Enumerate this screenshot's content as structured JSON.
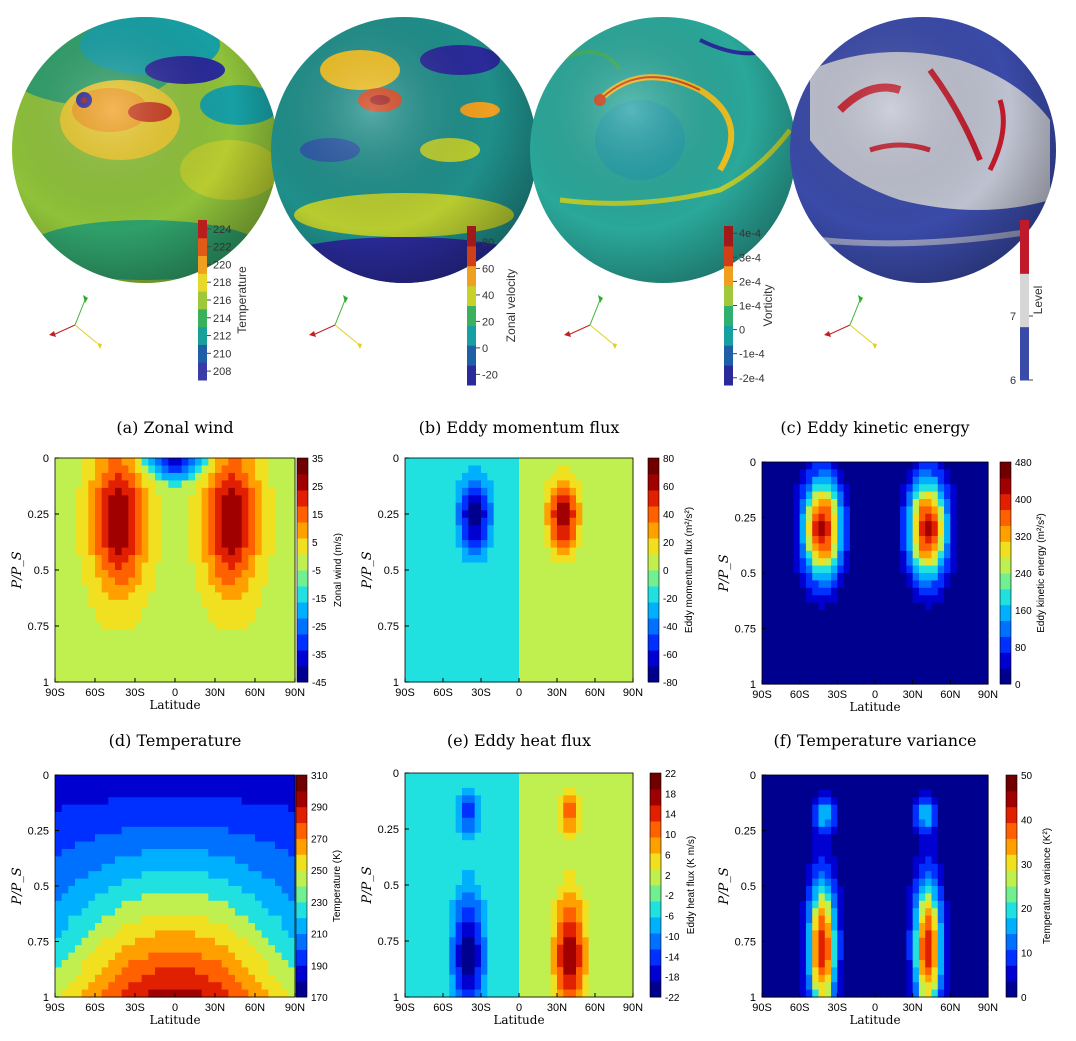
{
  "globes": [
    {
      "colorbar_label": "Temperature",
      "ticks": [
        "224",
        "222",
        "220",
        "218",
        "216",
        "214",
        "212",
        "210",
        "208"
      ],
      "tick_values": [
        224,
        222,
        220,
        218,
        216,
        214,
        212,
        210,
        208
      ],
      "range": [
        207,
        225
      ],
      "colors": [
        "#3b3ba8",
        "#1f5fa6",
        "#1aa09a",
        "#3ab05a",
        "#9cc83a",
        "#e8d82a",
        "#f0a020",
        "#e05a18",
        "#b81e1e"
      ]
    },
    {
      "colorbar_label": "Zonal velocity",
      "ticks": [
        "80",
        "60",
        "40",
        "20",
        "0",
        "-20"
      ],
      "tick_values": [
        80,
        60,
        40,
        20,
        0,
        -20
      ],
      "range": [
        -28,
        92
      ],
      "colors": [
        "#2a2a9a",
        "#1f5fa6",
        "#17a0a4",
        "#3db060",
        "#c8d02a",
        "#f0a020",
        "#d04018",
        "#a01a1a"
      ]
    },
    {
      "colorbar_label": "Vorticity",
      "ticks": [
        "4e-4",
        "3e-4",
        "2e-4",
        "1e-4",
        "0",
        "-1e-4",
        "-2e-4"
      ],
      "tick_values": [
        4,
        3,
        2,
        1,
        0,
        -1,
        -2
      ],
      "range": [
        -2.3,
        4.3
      ],
      "colors": [
        "#2a2a9a",
        "#1f5fa6",
        "#17a0a4",
        "#2fb070",
        "#a0c83a",
        "#f0a020",
        "#d04018",
        "#a01a1a"
      ]
    },
    {
      "colorbar_label": "Level",
      "ticks": [
        "7",
        "6"
      ],
      "tick_values": [
        7,
        6
      ],
      "range": [
        6,
        8.5
      ],
      "colors": [
        "#3a4aa8",
        "#d6d6d6",
        "#c01a2a"
      ]
    }
  ],
  "chart_data": [
    {
      "type": "heatmap",
      "title": "(a) Zonal wind",
      "xlabel": "Latitude",
      "ylabel": "P/P_S",
      "xticks": [
        "90S",
        "60S",
        "30S",
        "0",
        "30N",
        "60N",
        "90N"
      ],
      "yticks": [
        "0",
        "0.25",
        "0.5",
        "0.75",
        "1"
      ],
      "colorbar_label": "Zonal wind (m/s)",
      "colorbar_ticks": [
        "35",
        "25",
        "15",
        "5",
        "-5",
        "-15",
        "-25",
        "-35",
        "-45"
      ],
      "colorbar_tick_values": [
        35,
        25,
        15,
        5,
        -5,
        -15,
        -25,
        -35,
        -45
      ],
      "clim": [
        -45,
        35
      ],
      "peaks": [
        {
          "lat": -42,
          "p": 0.25,
          "value": 33
        },
        {
          "lat": 42,
          "p": 0.25,
          "value": 33
        }
      ],
      "minimum": {
        "lat": 0,
        "p": 0.0,
        "value": -45
      }
    },
    {
      "type": "heatmap",
      "title": "(b) Eddy momentum flux",
      "xlabel": "",
      "ylabel": "P/P_S",
      "xticks": [
        "90S",
        "60S",
        "30S",
        "0",
        "30N",
        "60N",
        "90N"
      ],
      "yticks": [
        "0",
        "0.25",
        "0.5",
        "0.75",
        "1"
      ],
      "colorbar_label": "Eddy momentum flux (m²/s²)",
      "colorbar_ticks": [
        "80",
        "60",
        "40",
        "20",
        "0",
        "-20",
        "-40",
        "-60",
        "-80"
      ],
      "colorbar_tick_values": [
        80,
        60,
        40,
        20,
        0,
        -20,
        -40,
        -60,
        -80
      ],
      "clim": [
        -80,
        80
      ],
      "peaks": [
        {
          "lat": 35,
          "p": 0.25,
          "value": 75
        },
        {
          "lat": -35,
          "p": 0.25,
          "value": -75
        }
      ]
    },
    {
      "type": "heatmap",
      "title": "(c) Eddy kinetic energy",
      "xlabel": "Latitude",
      "ylabel": "P/P_S",
      "xticks": [
        "90S",
        "60S",
        "30S",
        "0",
        "30N",
        "60N",
        "90N"
      ],
      "yticks": [
        "0",
        "0.25",
        "0.5",
        "0.75",
        "1"
      ],
      "colorbar_label": "Eddy kinetic energy (m²/s²)",
      "colorbar_ticks": [
        "480",
        "400",
        "320",
        "240",
        "160",
        "80",
        "0"
      ],
      "colorbar_tick_values": [
        480,
        400,
        320,
        240,
        160,
        80,
        0
      ],
      "clim": [
        0,
        480
      ],
      "peaks": [
        {
          "lat": -42,
          "p": 0.28,
          "value": 450
        },
        {
          "lat": 42,
          "p": 0.28,
          "value": 450
        }
      ]
    },
    {
      "type": "heatmap",
      "title": "(d) Temperature",
      "xlabel": "Latitude",
      "ylabel": "P/P_S",
      "xticks": [
        "90S",
        "60S",
        "30S",
        "0",
        "30N",
        "60N",
        "90N"
      ],
      "yticks": [
        "0",
        "0.25",
        "0.5",
        "0.75",
        "1"
      ],
      "colorbar_label": "Temperature (K)",
      "colorbar_ticks": [
        "310",
        "290",
        "270",
        "250",
        "230",
        "210",
        "190",
        "170"
      ],
      "colorbar_tick_values": [
        310,
        290,
        270,
        250,
        230,
        210,
        190,
        170
      ],
      "clim": [
        170,
        310
      ],
      "peaks": [
        {
          "lat": 0,
          "p": 1.0,
          "value": 305
        }
      ]
    },
    {
      "type": "heatmap",
      "title": "(e) Eddy heat flux",
      "xlabel": "Latitude",
      "ylabel": "P/P_S",
      "xticks": [
        "90S",
        "60S",
        "30S",
        "0",
        "30N",
        "60N",
        "90N"
      ],
      "yticks": [
        "0",
        "0.25",
        "0.5",
        "0.75",
        "1"
      ],
      "colorbar_label": "Eddy heat flux (K m/s)",
      "colorbar_ticks": [
        "22",
        "18",
        "14",
        "10",
        "6",
        "2",
        "-2",
        "-6",
        "-10",
        "-14",
        "-18",
        "-22"
      ],
      "colorbar_tick_values": [
        22,
        18,
        14,
        10,
        6,
        2,
        -2,
        -6,
        -10,
        -14,
        -18,
        -22
      ],
      "clim": [
        -22,
        22
      ],
      "peaks": [
        {
          "lat": 40,
          "p": 0.85,
          "value": 21
        },
        {
          "lat": -40,
          "p": 0.85,
          "value": -21
        }
      ]
    },
    {
      "type": "heatmap",
      "title": "(f) Temperature variance",
      "xlabel": "Latitude",
      "ylabel": "P/P_S",
      "xticks": [
        "90S",
        "60S",
        "30S",
        "0",
        "30N",
        "60N",
        "90N"
      ],
      "yticks": [
        "0",
        "0.25",
        "0.5",
        "0.75",
        "1"
      ],
      "colorbar_label": "Temperature variance (K²)",
      "colorbar_ticks": [
        "50",
        "40",
        "30",
        "20",
        "10",
        "0"
      ],
      "colorbar_tick_values": [
        50,
        40,
        30,
        20,
        10,
        0
      ],
      "clim": [
        0,
        50
      ],
      "peaks": [
        {
          "lat": -42,
          "p": 0.78,
          "value": 45
        },
        {
          "lat": 42,
          "p": 0.78,
          "value": 45
        }
      ]
    }
  ]
}
